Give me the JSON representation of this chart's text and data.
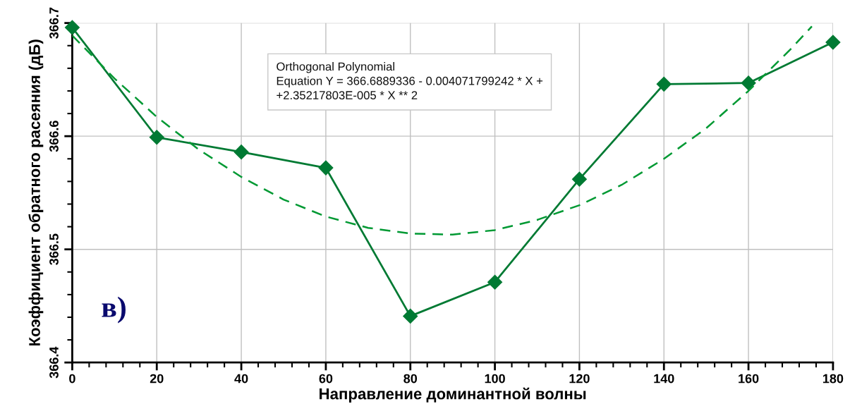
{
  "chart_data": {
    "type": "line",
    "xlabel": "Направление доминантной волны",
    "ylabel": "Коэффициент обратного расеяния (дБ)",
    "xlim": [
      0,
      180
    ],
    "xticks": [
      0,
      20,
      40,
      60,
      80,
      100,
      120,
      140,
      160,
      180
    ],
    "ylim": [
      366.4,
      366.7
    ],
    "yticks": [
      366.4,
      366.5,
      366.6,
      366.7
    ],
    "grid": true,
    "legend": false,
    "series": [
      {
        "color": "#007a33",
        "marker": "diamond",
        "line_style": "solid",
        "x": [
          0,
          20,
          40,
          60,
          80,
          100,
          120,
          140,
          160,
          180
        ],
        "values": [
          366.696,
          366.599,
          366.586,
          366.572,
          366.441,
          366.471,
          366.562,
          366.646,
          366.647,
          366.683
        ]
      },
      {
        "type": "line",
        "color": "#009933",
        "marker": "none",
        "line_style": "dashed",
        "x": [
          0,
          10,
          20,
          30,
          40,
          50,
          60,
          70,
          80,
          90,
          100,
          110,
          120,
          130,
          140,
          150,
          160,
          170,
          175
        ],
        "values": [
          366.689,
          366.651,
          366.617,
          366.588,
          366.564,
          366.544,
          366.529,
          366.519,
          366.514,
          366.513,
          366.517,
          366.526,
          366.539,
          366.557,
          366.58,
          366.607,
          366.64,
          366.677,
          366.697
        ]
      }
    ],
    "annotations": [
      "Orthogonal Polynomial\nEquation Y = 366.6889336 - 0.004071799242 * X +\n+2.35217803E-005 * X ** 2",
      "в)"
    ]
  }
}
